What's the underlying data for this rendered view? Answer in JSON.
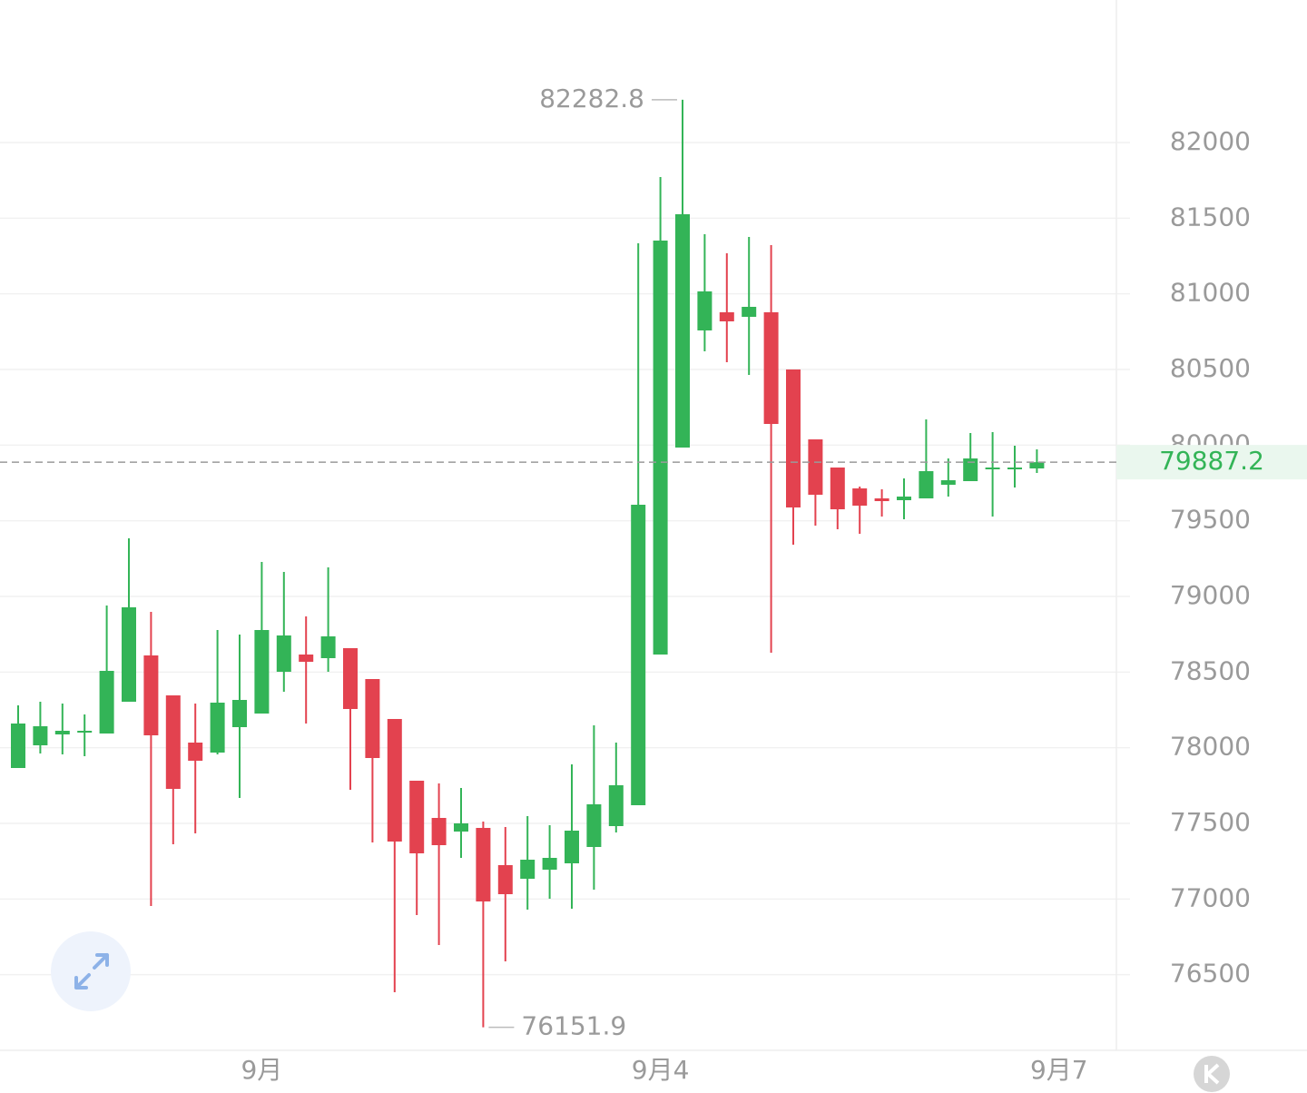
{
  "chart_data": {
    "type": "candlestick",
    "categories": [
      null,
      null,
      null,
      null,
      null,
      null,
      null,
      null,
      null,
      null,
      null,
      "9月",
      null,
      null,
      null,
      null,
      null,
      null,
      null,
      null,
      null,
      null,
      null,
      null,
      null,
      null,
      null,
      null,
      null,
      "9月4",
      null,
      null,
      null,
      null,
      null,
      null,
      null,
      null,
      null,
      null,
      null,
      null,
      null,
      null,
      null,
      null,
      null,
      "9月7"
    ],
    "open": [
      77866,
      78016,
      78088,
      78106,
      78094,
      78304,
      78610,
      78346,
      78034,
      77968,
      78136,
      78226,
      78502,
      78616,
      78592,
      78658,
      78454,
      78190,
      77782,
      77536,
      77446,
      77470,
      77224,
      77134,
      77194,
      77236,
      77344,
      77482,
      77620,
      78616,
      79984,
      80758,
      80878,
      80848,
      80878,
      80500,
      80038,
      79852,
      79714,
      79648,
      79636,
      79648,
      79738,
      79762,
      79840,
      79840,
      79846,
      null
    ],
    "high": [
      78280,
      78304,
      78292,
      78220,
      78940,
      79384,
      78898,
      78346,
      78292,
      78778,
      78748,
      79228,
      79162,
      78868,
      79192,
      78658,
      78454,
      78190,
      77782,
      77764,
      77734,
      77512,
      77476,
      77548,
      77488,
      77890,
      78148,
      78034,
      81334,
      81772,
      82282.8,
      81394,
      81268,
      81376,
      81322,
      80500,
      80038,
      79852,
      79726,
      79708,
      79780,
      80170,
      79912,
      80080,
      80086,
      79996,
      79972,
      null
    ],
    "low": [
      77866,
      77962,
      77956,
      77944,
      78094,
      78304,
      76954,
      77362,
      77434,
      77956,
      77668,
      78226,
      78370,
      78160,
      78502,
      77722,
      77374,
      76384,
      76894,
      76696,
      77272,
      76151.9,
      76588,
      76930,
      77002,
      76936,
      77062,
      77440,
      77620,
      78616,
      79984,
      80620,
      80548,
      80464,
      78628,
      79342,
      79468,
      79444,
      79414,
      79528,
      79510,
      79648,
      79660,
      79762,
      79528,
      79720,
      79816,
      null
    ],
    "close": [
      78160,
      78142,
      78112,
      78112,
      78508,
      78928,
      78082,
      77728,
      77914,
      78298,
      78316,
      78778,
      78742,
      78568,
      78736,
      78256,
      77932,
      77380,
      77302,
      77356,
      77500,
      76984,
      77032,
      77260,
      77272,
      77452,
      77626,
      77752,
      79606,
      81352,
      81526,
      81016,
      80818,
      80914,
      80140,
      79588,
      79672,
      79576,
      79600,
      79630,
      79660,
      79828,
      79768,
      79912,
      79852,
      79852,
      79887.2,
      null
    ],
    "up_color": "#33b457",
    "down_color": "#e3424f",
    "ylim": [
      76000,
      82942
    ],
    "yticks": [
      76500,
      77000,
      77500,
      78000,
      78500,
      79000,
      79500,
      80000,
      80500,
      81000,
      81500,
      82000
    ],
    "grid": true
  }
}
